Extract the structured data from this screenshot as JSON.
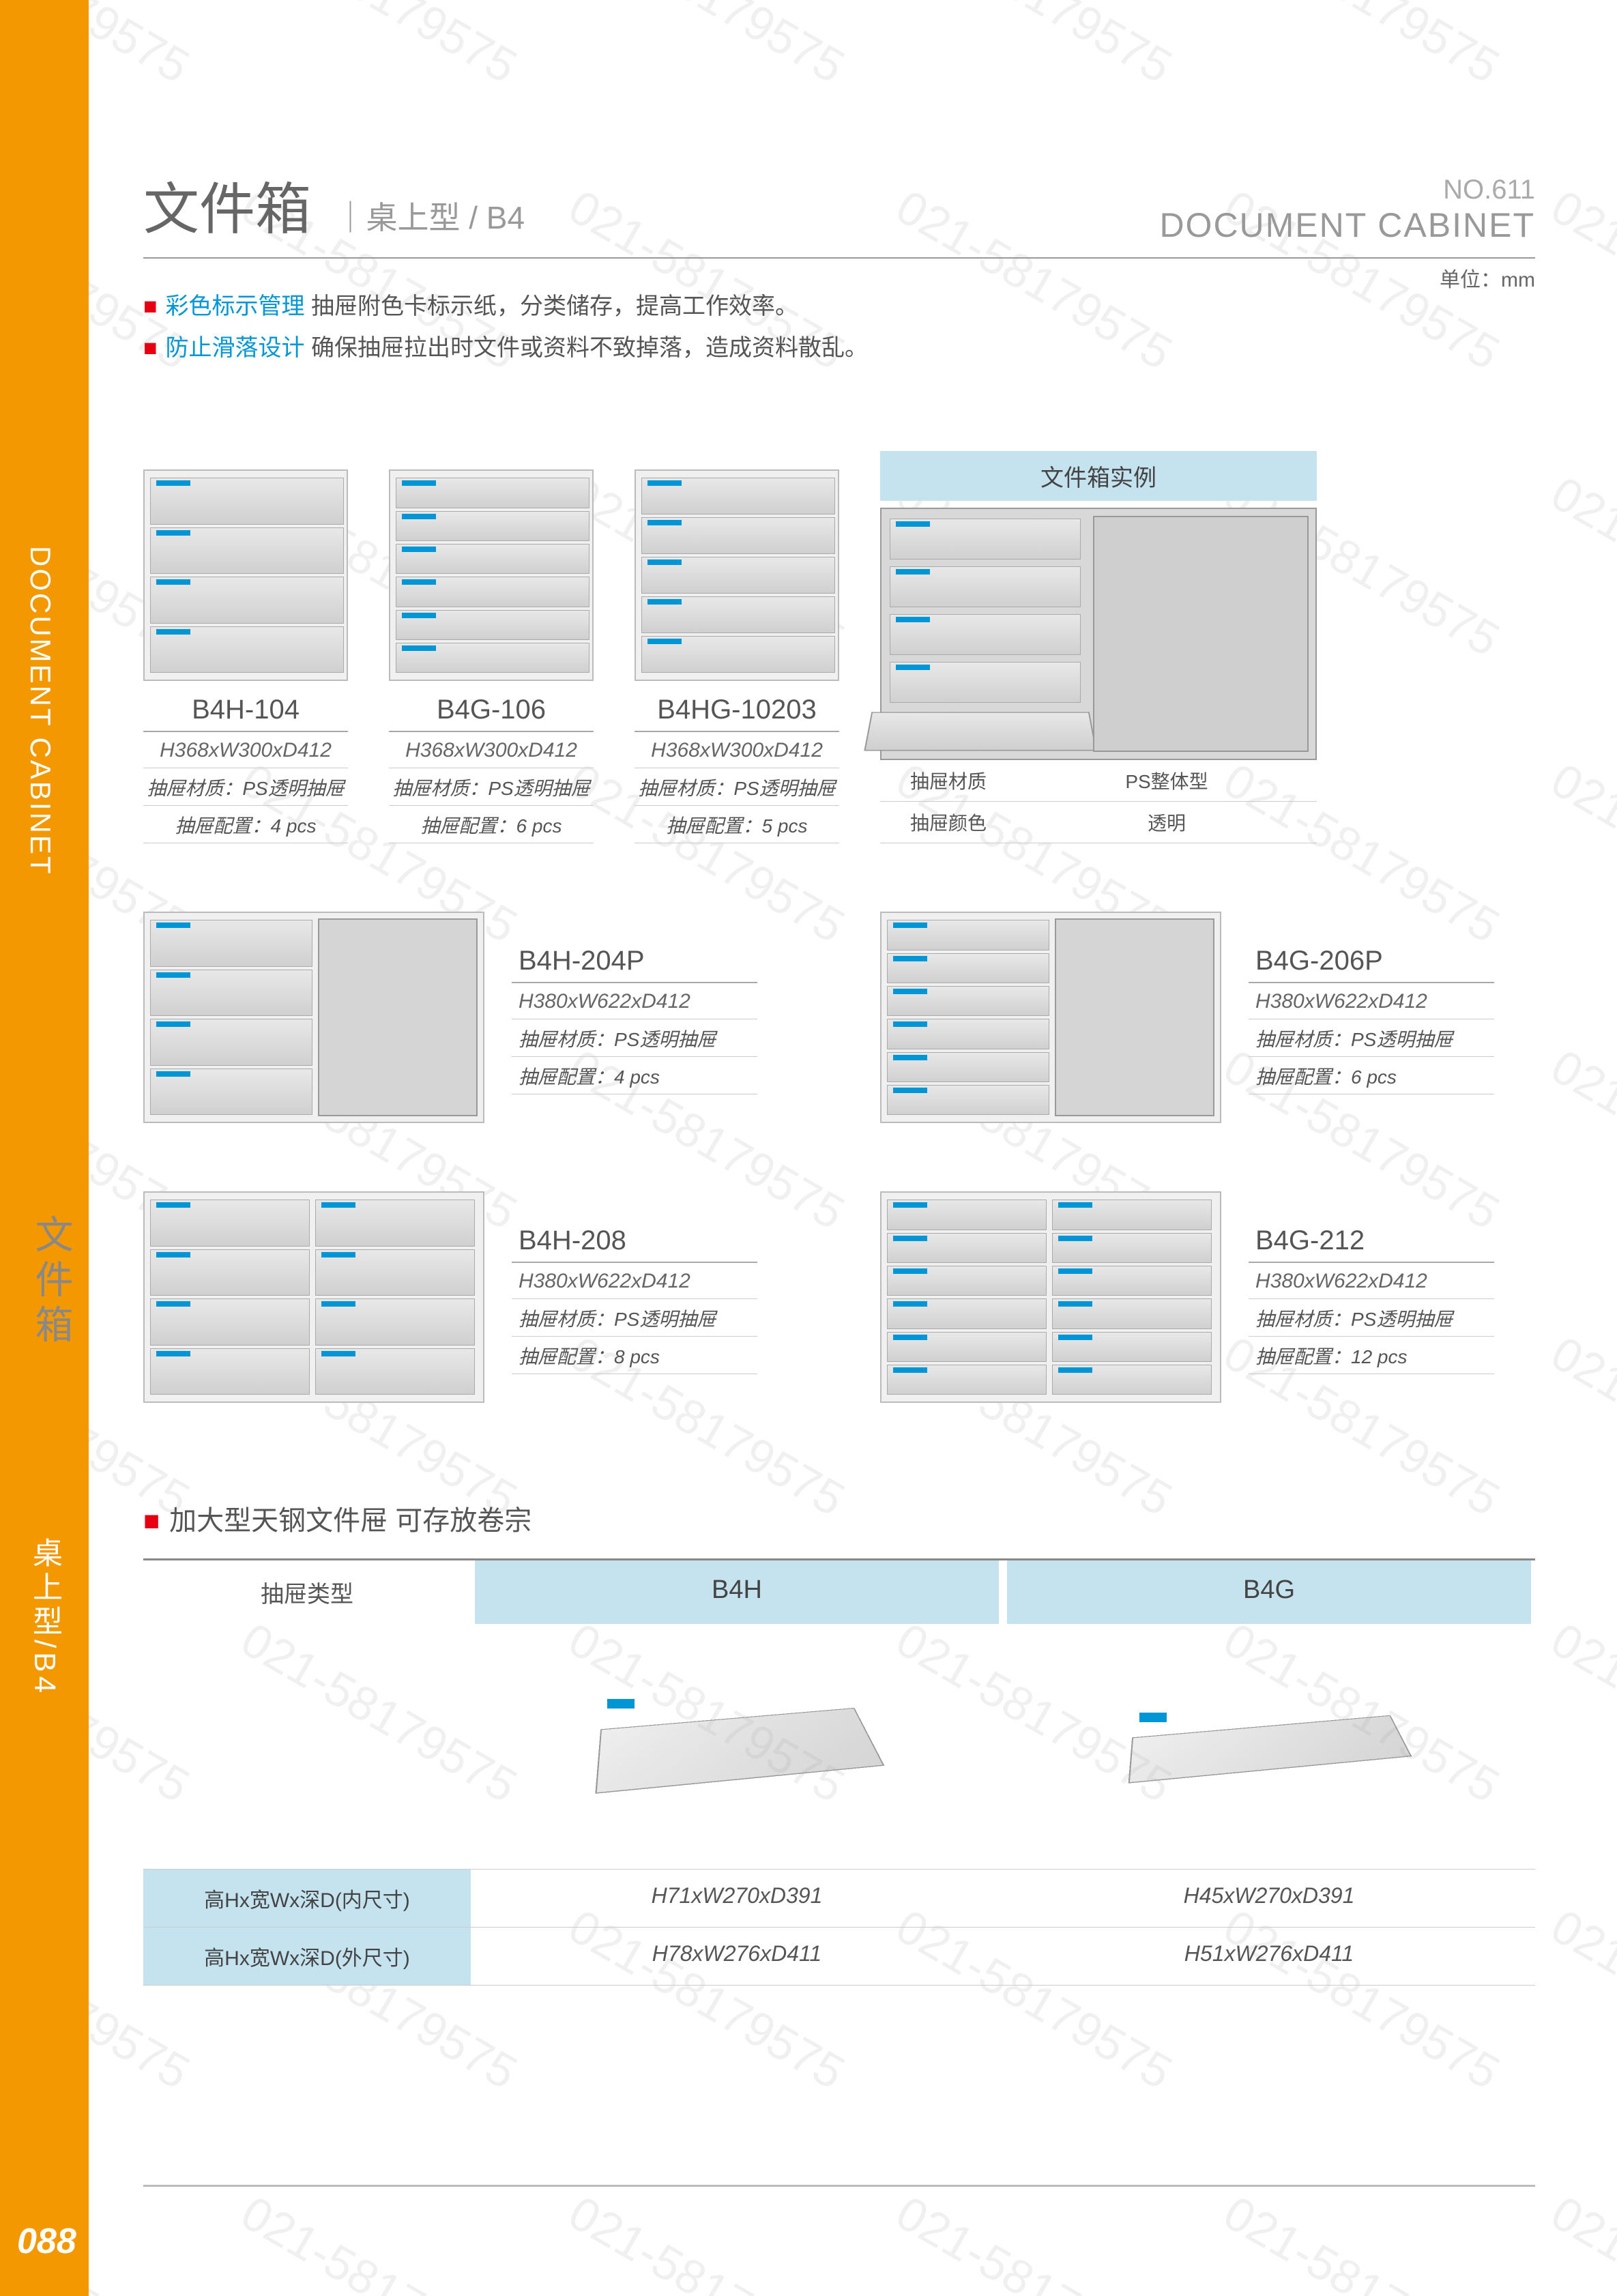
{
  "watermark_text": "021-58179575",
  "page_number": "088",
  "sidebar": {
    "en": "DOCUMENT CABINET",
    "cn": "文件箱",
    "sub": "桌上型/B4"
  },
  "header": {
    "title_cn": "文件箱",
    "title_sub": "桌上型 / B4",
    "no": "NO.611",
    "en": "DOCUMENT CABINET"
  },
  "unit_label": "单位：mm",
  "features": [
    {
      "kw": "彩色标示管理",
      "desc": "抽屉附色卡标示纸，分类储存，提高工作效率。"
    },
    {
      "kw": "防止滑落设计",
      "desc": "确保抽屉拉出时文件或资料不致掉落，造成资料散乱。"
    }
  ],
  "example_header": "文件箱实例",
  "example_specs": [
    {
      "label": "抽屉材质",
      "value": "PS整体型"
    },
    {
      "label": "抽屉颜色",
      "value": "透明"
    }
  ],
  "spec_labels": {
    "material_prefix": "抽屉材质：",
    "config_prefix": "抽屉配置："
  },
  "products_row1": [
    {
      "model": "B4H-104",
      "dim": "H368xW300xD412",
      "material": "PS透明抽屉",
      "config": "4 pcs",
      "drawers": 4
    },
    {
      "model": "B4G-106",
      "dim": "H368xW300xD412",
      "material": "PS透明抽屉",
      "config": "6 pcs",
      "drawers": 6
    },
    {
      "model": "B4HG-10203",
      "dim": "H368xW300xD412",
      "material": "PS透明抽屉",
      "config": "5 pcs",
      "drawers": 5
    }
  ],
  "products_row2": [
    {
      "model": "B4H-204P",
      "dim": "H380xW622xD412",
      "material": "PS透明抽屉",
      "config": "4 pcs",
      "drawers": 4,
      "compartment": true
    },
    {
      "model": "B4G-206P",
      "dim": "H380xW622xD412",
      "material": "PS透明抽屉",
      "config": "6 pcs",
      "drawers": 6,
      "compartment": true
    }
  ],
  "products_row3": [
    {
      "model": "B4H-208",
      "dim": "H380xW622xD412",
      "material": "PS透明抽屉",
      "config": "8 pcs",
      "drawers": 4,
      "double": true
    },
    {
      "model": "B4G-212",
      "dim": "H380xW622xD412",
      "material": "PS透明抽屉",
      "config": "12 pcs",
      "drawers": 6,
      "double": true
    }
  ],
  "section2": {
    "title": "加大型天钢文件屉 可存放卷宗",
    "col_header": "抽屉类型",
    "cols": [
      "B4H",
      "B4G"
    ],
    "rows": [
      {
        "label": "高Hx宽Wx深D(内尺寸)",
        "v1": "H71xW270xD391",
        "v2": "H45xW270xD391"
      },
      {
        "label": "高Hx宽Wx深D(外尺寸)",
        "v1": "H78xW276xD411",
        "v2": "H51xW276xD411"
      }
    ]
  },
  "colors": {
    "orange": "#f39800",
    "red": "#e60012",
    "blue": "#0096d6",
    "lightblue": "#c5e3ef",
    "gray_text": "#666",
    "gray_light": "#999"
  }
}
